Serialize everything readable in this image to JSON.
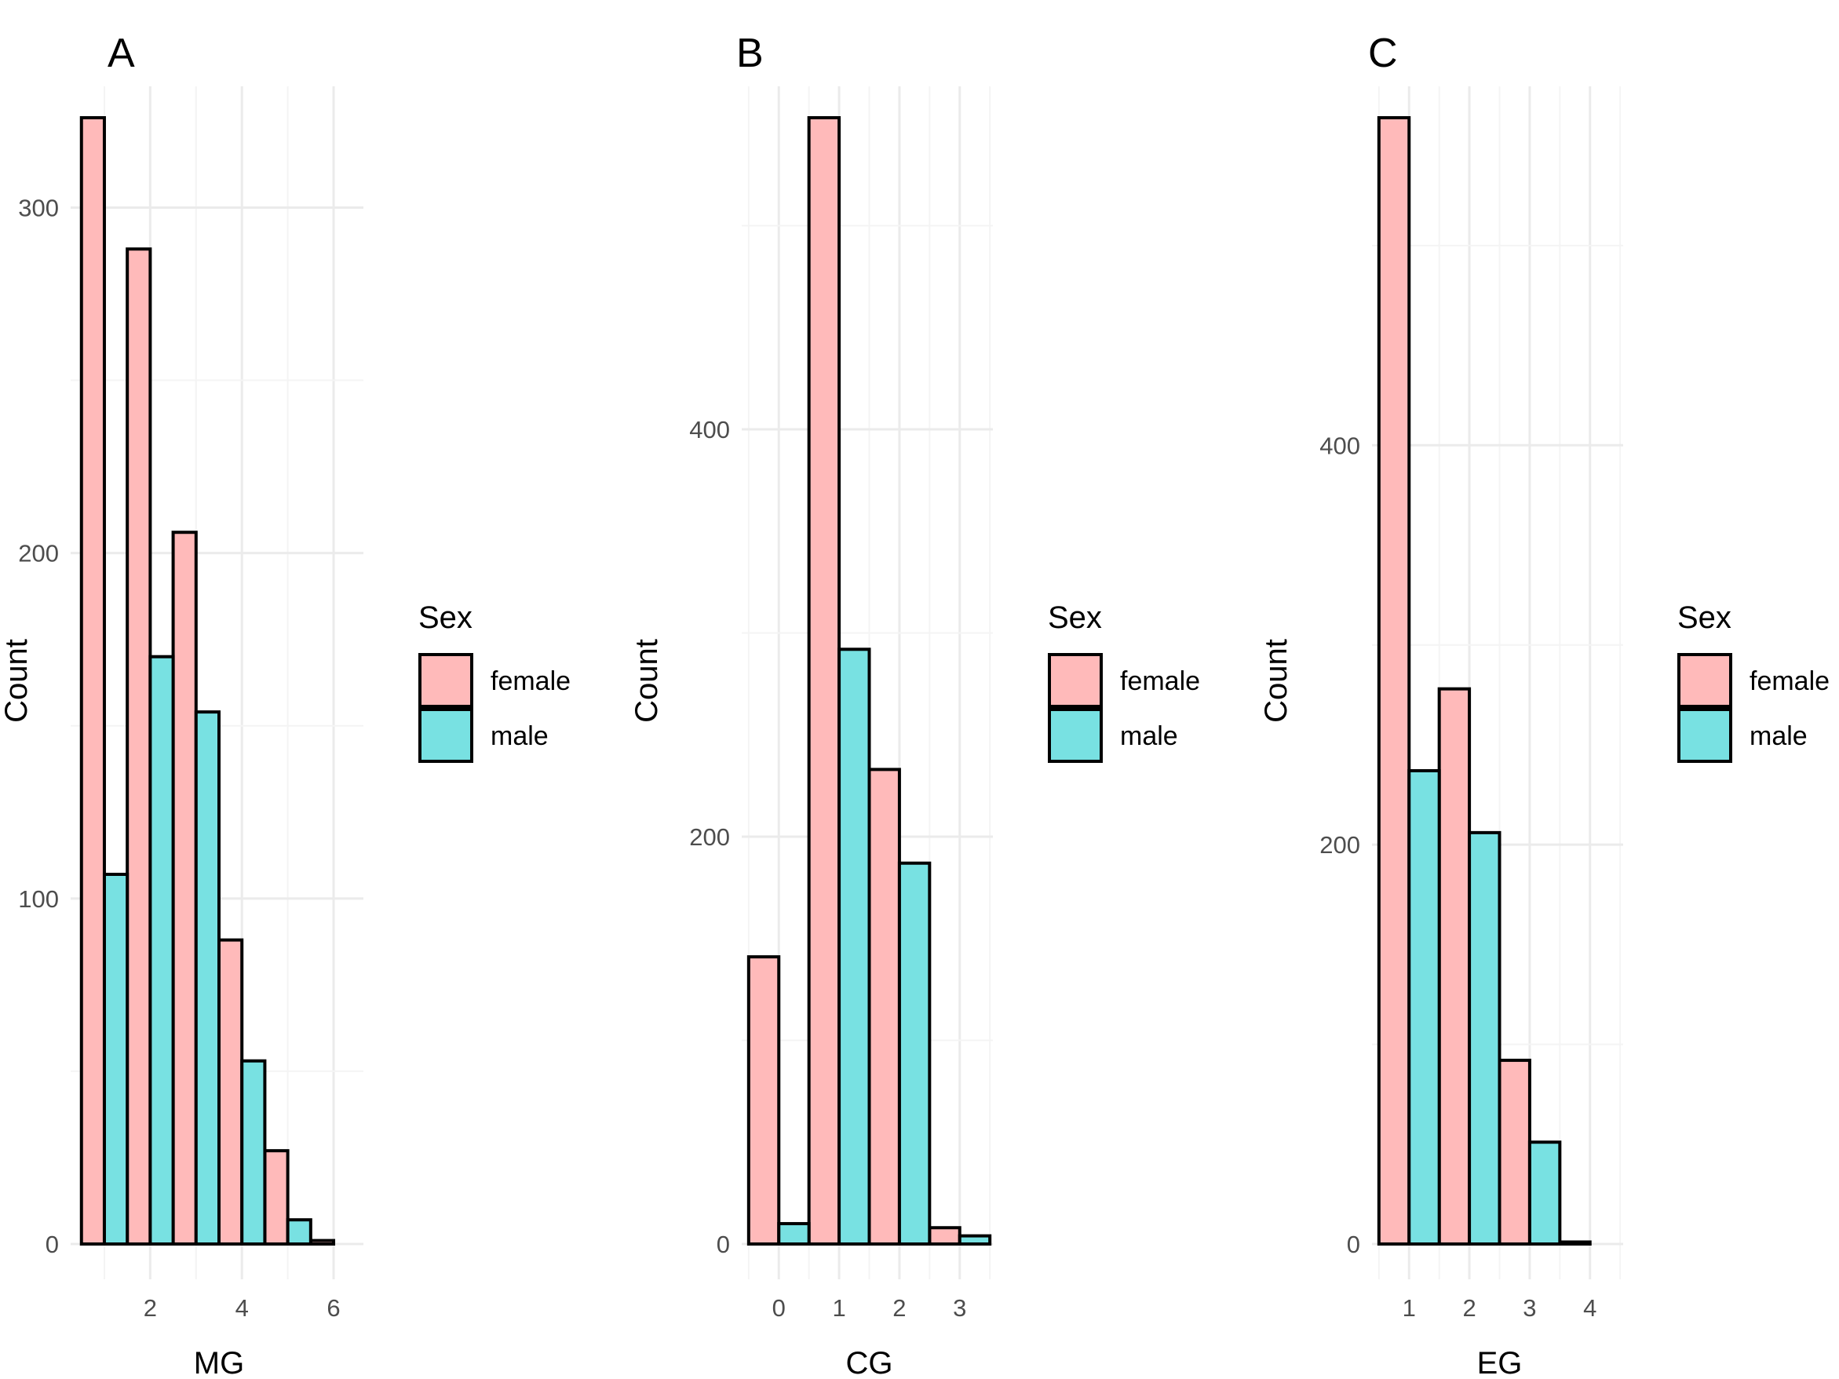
{
  "colors": {
    "female": "#ffbaba",
    "male": "#78e1e2",
    "outline": "#000000",
    "grid_major": "#ebebeb",
    "grid_minor": "#f4f4f4",
    "tick_text": "#4d4d4d"
  },
  "chart_data": [
    {
      "type": "bar",
      "tag": "A",
      "xlabel": "MG",
      "ylabel": "Count",
      "x_ticks": [
        "2",
        "4",
        "6"
      ],
      "x_tick_values": [
        2,
        4,
        6
      ],
      "x_range": [
        0.35,
        6.65
      ],
      "y_ticks": [
        "0",
        "100",
        "200",
        "300"
      ],
      "y_tick_values": [
        0,
        100,
        200,
        300
      ],
      "y_minor_values": [
        50,
        150,
        250
      ],
      "ylim": [
        0,
        326
      ],
      "bar_width": 0.5,
      "legend": {
        "title": "Sex",
        "labels": [
          "female",
          "male"
        ],
        "position": "right"
      },
      "series": [
        {
          "name": "female",
          "x": [
            1,
            2,
            3,
            4,
            5,
            6
          ],
          "values": [
            326,
            288,
            206,
            88,
            27,
            1
          ]
        },
        {
          "name": "male",
          "x": [
            1,
            2,
            3,
            4,
            5,
            6
          ],
          "values": [
            107,
            170,
            154,
            53,
            7,
            0
          ]
        }
      ]
    },
    {
      "type": "bar",
      "tag": "B",
      "xlabel": "CG",
      "ylabel": "Count",
      "x_ticks": [
        "0",
        "1",
        "2",
        "3"
      ],
      "x_tick_values": [
        0,
        1,
        2,
        3
      ],
      "x_range": [
        -0.55,
        3.55
      ],
      "y_ticks": [
        "0",
        "200",
        "400"
      ],
      "y_tick_values": [
        0,
        200,
        400
      ],
      "y_minor_values": [
        100,
        300,
        500
      ],
      "ylim": [
        0,
        553
      ],
      "bar_width": 0.5,
      "legend": {
        "title": "Sex",
        "labels": [
          "female",
          "male"
        ],
        "position": "right"
      },
      "series": [
        {
          "name": "female",
          "x": [
            0,
            1,
            2,
            3
          ],
          "values": [
            141,
            553,
            233,
            8
          ]
        },
        {
          "name": "male",
          "x": [
            0,
            1,
            2,
            3
          ],
          "values": [
            10,
            292,
            187,
            4
          ]
        }
      ]
    },
    {
      "type": "bar",
      "tag": "C",
      "xlabel": "EG",
      "ylabel": "Count",
      "x_ticks": [
        "1",
        "2",
        "3",
        "4"
      ],
      "x_tick_values": [
        1,
        2,
        3,
        4
      ],
      "x_range": [
        0.45,
        4.55
      ],
      "y_ticks": [
        "0",
        "200",
        "400"
      ],
      "y_tick_values": [
        0,
        200,
        400
      ],
      "y_minor_values": [
        100,
        300,
        500
      ],
      "ylim": [
        0,
        564
      ],
      "bar_width": 0.5,
      "legend": {
        "title": "Sex",
        "labels": [
          "female",
          "male"
        ],
        "position": "right"
      },
      "series": [
        {
          "name": "female",
          "x": [
            1,
            2,
            3,
            4
          ],
          "values": [
            564,
            278,
            92,
            1
          ]
        },
        {
          "name": "male",
          "x": [
            1,
            2,
            3,
            4
          ],
          "values": [
            237,
            206,
            51,
            0
          ]
        }
      ]
    }
  ]
}
